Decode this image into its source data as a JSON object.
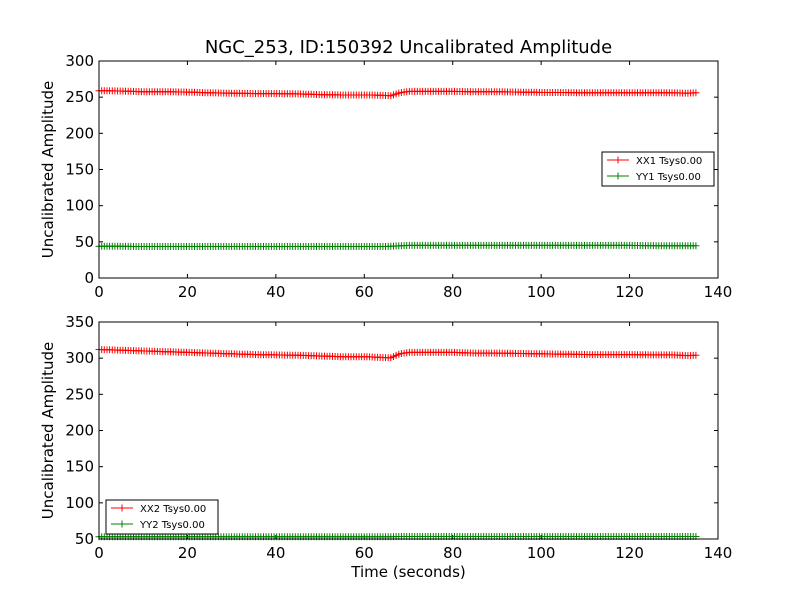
{
  "chart_data": [
    {
      "type": "line",
      "title": "NGC_253, ID:150392 Uncalibrated Amplitude",
      "xlabel": "",
      "ylabel": "Uncalibrated Amplitude",
      "xlim": [
        0,
        140
      ],
      "ylim": [
        0,
        300
      ],
      "xticks": [
        "0",
        "20",
        "40",
        "60",
        "80",
        "100",
        "120",
        "140"
      ],
      "yticks": [
        "0",
        "50",
        "100",
        "150",
        "200",
        "250",
        "300"
      ],
      "legend_position": "center-right",
      "series": [
        {
          "name": "XX1 Tsys0.00",
          "color": "#ff0000",
          "x": [
            0,
            5,
            10,
            15,
            20,
            25,
            30,
            35,
            40,
            45,
            50,
            55,
            60,
            62,
            64,
            66,
            68,
            70,
            75,
            80,
            85,
            90,
            95,
            100,
            105,
            110,
            115,
            120,
            125,
            130,
            133,
            135
          ],
          "y": [
            259,
            258.5,
            257.5,
            257.5,
            257,
            256,
            255.5,
            255,
            255,
            254.5,
            253.5,
            253,
            253,
            253,
            252.5,
            252,
            256,
            258,
            258,
            258,
            257.5,
            257.5,
            257,
            256.5,
            256.5,
            256,
            256,
            256,
            256,
            256,
            255.5,
            256
          ]
        },
        {
          "name": "YY1 Tsys0.00",
          "color": "#008000",
          "x": [
            0,
            10,
            20,
            30,
            40,
            50,
            60,
            65,
            68,
            70,
            80,
            90,
            100,
            110,
            120,
            130,
            135
          ],
          "y": [
            44,
            43.5,
            43.5,
            43.5,
            43.5,
            43.5,
            43.5,
            43.5,
            44.5,
            45,
            45,
            45,
            45,
            45,
            45,
            44.5,
            44.5
          ]
        }
      ]
    },
    {
      "type": "line",
      "title": "",
      "xlabel": "Time (seconds)",
      "ylabel": "Uncalibrated Amplitude",
      "xlim": [
        0,
        140
      ],
      "ylim": [
        50,
        350
      ],
      "xticks": [
        "0",
        "20",
        "40",
        "60",
        "80",
        "100",
        "120",
        "140"
      ],
      "yticks": [
        "50",
        "100",
        "150",
        "200",
        "250",
        "300",
        "350"
      ],
      "legend_position": "lower-left",
      "series": [
        {
          "name": "XX2 Tsys0.00",
          "color": "#ff0000",
          "x": [
            0,
            5,
            10,
            15,
            20,
            25,
            30,
            35,
            40,
            45,
            50,
            55,
            60,
            62,
            64,
            66,
            68,
            70,
            75,
            80,
            85,
            90,
            95,
            100,
            105,
            110,
            115,
            120,
            125,
            130,
            133,
            135
          ],
          "y": [
            312,
            311,
            310,
            309,
            308,
            307,
            306,
            305,
            304.5,
            304,
            303,
            302,
            302,
            301.5,
            301,
            300.5,
            306,
            308,
            308,
            308,
            307,
            307,
            306.5,
            306,
            305.5,
            305,
            305,
            305,
            304.5,
            304.5,
            303.5,
            304
          ]
        },
        {
          "name": "YY2 Tsys0.00",
          "color": "#008000",
          "x": [
            0,
            10,
            20,
            30,
            40,
            50,
            60,
            65,
            68,
            70,
            80,
            90,
            100,
            110,
            120,
            130,
            135
          ],
          "y": [
            53,
            53,
            53,
            53,
            53,
            53,
            53,
            53,
            53.5,
            53.5,
            53.5,
            53.5,
            53.5,
            53.5,
            53.5,
            53.5,
            53.5
          ]
        }
      ]
    }
  ]
}
